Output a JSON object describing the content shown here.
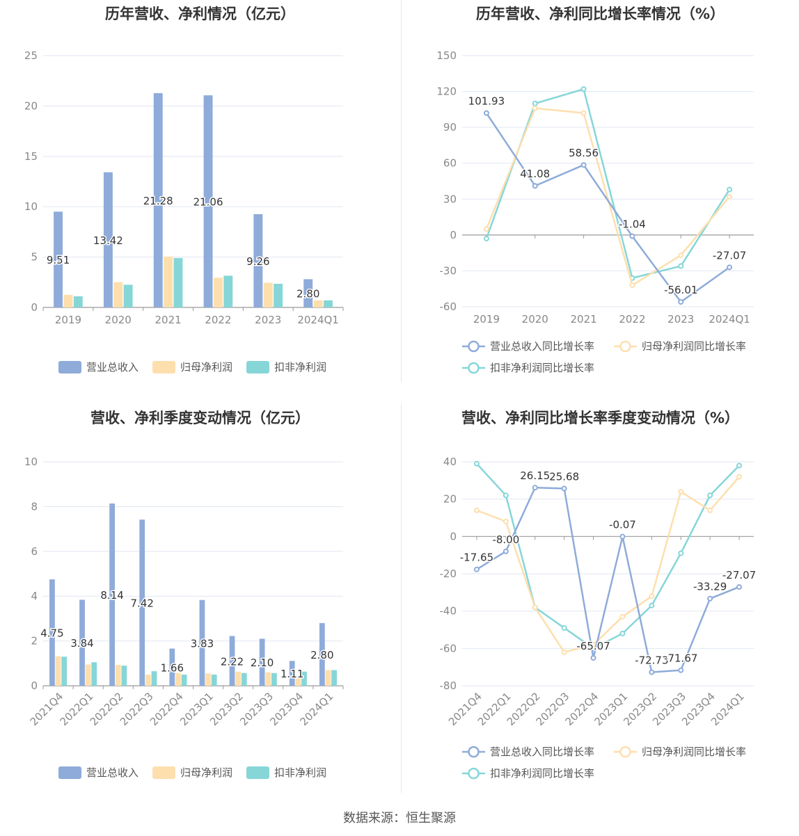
{
  "colors": {
    "revenue": "#8eabd9",
    "net_profit": "#fddfae",
    "deducted_profit": "#86d6d8",
    "grid": "#e0e6f1",
    "axis": "#888888"
  },
  "footer": "数据来源：恒生聚源",
  "legend_labels": {
    "bar": [
      "营业总收入",
      "归母净利润",
      "扣非净利润"
    ],
    "line": [
      "营业总收入同比增长率",
      "归母净利润同比增长率",
      "扣非净利润同比增长率"
    ]
  },
  "chart_data": [
    {
      "id": "annual_bar",
      "type": "bar",
      "title": "历年营收、净利情况（亿元）",
      "categories": [
        "2019",
        "2020",
        "2021",
        "2022",
        "2023",
        "2024Q1"
      ],
      "ylim": [
        0,
        25
      ],
      "yticks": [
        0,
        5,
        10,
        15,
        20,
        25
      ],
      "series": [
        {
          "name": "营业总收入",
          "values": [
            9.51,
            13.42,
            21.28,
            21.06,
            9.26,
            2.8
          ],
          "labels": [
            "9.51",
            "13.42",
            "21.28",
            "21.06",
            "9.26",
            "2.80"
          ]
        },
        {
          "name": "归母净利润",
          "values": [
            1.25,
            2.5,
            5.05,
            2.95,
            2.45,
            0.7
          ]
        },
        {
          "name": "扣非净利润",
          "values": [
            1.1,
            2.25,
            4.9,
            3.15,
            2.35,
            0.7
          ]
        }
      ]
    },
    {
      "id": "annual_growth",
      "type": "line",
      "title": "历年营收、净利同比增长率情况（%）",
      "categories": [
        "2019",
        "2020",
        "2021",
        "2022",
        "2023",
        "2024Q1"
      ],
      "ylim": [
        -60,
        150
      ],
      "yticks": [
        -60,
        -30,
        0,
        30,
        60,
        90,
        120,
        150
      ],
      "series": [
        {
          "name": "营业总收入同比增长率",
          "values": [
            101.93,
            41.08,
            58.56,
            -1.04,
            -56.01,
            -27.07
          ],
          "labels": [
            "101.93",
            "41.08",
            "58.56",
            "-1.04",
            "-56.01",
            "-27.07"
          ]
        },
        {
          "name": "归母净利润同比增长率",
          "values": [
            5,
            106,
            102,
            -42,
            -17,
            32
          ]
        },
        {
          "name": "扣非净利润同比增长率",
          "values": [
            -3,
            110,
            122,
            -36,
            -26,
            38
          ]
        }
      ]
    },
    {
      "id": "quarterly_bar",
      "type": "bar",
      "title": "营收、净利季度变动情况（亿元）",
      "categories": [
        "2021Q4",
        "2022Q1",
        "2022Q2",
        "2022Q3",
        "2022Q4",
        "2023Q1",
        "2023Q2",
        "2023Q3",
        "2023Q4",
        "2024Q1"
      ],
      "ylim": [
        0,
        10
      ],
      "yticks": [
        0,
        2,
        4,
        6,
        8,
        10
      ],
      "series": [
        {
          "name": "营业总收入",
          "values": [
            4.75,
            3.84,
            8.14,
            7.42,
            1.66,
            3.83,
            2.22,
            2.1,
            1.11,
            2.8
          ],
          "labels": [
            "4.75",
            "3.84",
            "8.14",
            "7.42",
            "1.66",
            "3.83",
            "2.22",
            "2.10",
            "1.11",
            "2.80"
          ]
        },
        {
          "name": "归母净利润",
          "values": [
            1.32,
            0.95,
            0.93,
            0.5,
            0.57,
            0.55,
            0.63,
            0.6,
            0.4,
            0.7
          ]
        },
        {
          "name": "扣非净利润",
          "values": [
            1.3,
            1.05,
            0.9,
            0.65,
            0.5,
            0.5,
            0.57,
            0.57,
            0.63,
            0.7
          ]
        }
      ]
    },
    {
      "id": "quarterly_growth",
      "type": "line",
      "title": "营收、净利同比增长率季度变动情况（%）",
      "categories": [
        "2021Q4",
        "2022Q1",
        "2022Q2",
        "2022Q3",
        "2022Q4",
        "2023Q1",
        "2023Q2",
        "2023Q3",
        "2023Q4",
        "2024Q1"
      ],
      "ylim": [
        -80,
        40
      ],
      "yticks": [
        -80,
        -60,
        -40,
        -20,
        0,
        20,
        40
      ],
      "series": [
        {
          "name": "营业总收入同比增长率",
          "values": [
            -17.65,
            -8.0,
            26.15,
            25.68,
            -65.07,
            -0.07,
            -72.73,
            -71.67,
            -33.29,
            -27.07
          ],
          "labels": [
            "-17.65",
            "-8.00",
            "26.15",
            "25.68",
            "-65.07",
            "-0.07",
            "-72.73",
            "-71.67",
            "-33.29",
            "-27.07"
          ]
        },
        {
          "name": "归母净利润同比增长率",
          "values": [
            14,
            8,
            -38,
            -62,
            -58,
            -43,
            -32,
            24,
            14,
            32
          ]
        },
        {
          "name": "扣非净利润同比增长率",
          "values": [
            39,
            22,
            -38,
            -49,
            -60,
            -52,
            -37,
            -9,
            22,
            38
          ]
        }
      ]
    }
  ]
}
